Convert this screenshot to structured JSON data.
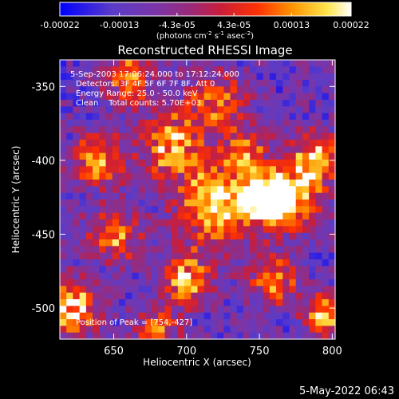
{
  "chart_data": {
    "type": "heatmap",
    "title": "Reconstructed RHESSI Image",
    "xlabel": "Heliocentric X (arcsec)",
    "ylabel": "Heliocentric Y (arcsec)",
    "xlim": [
      613,
      802
    ],
    "ylim": [
      -521,
      -332
    ],
    "xticks": [
      650,
      700,
      750,
      800
    ],
    "yticks": [
      -350,
      -400,
      -450,
      -500
    ],
    "colorbar": {
      "min": -0.00022,
      "max": 0.00022,
      "ticks": [
        "-0.00022",
        "-0.00013",
        "-4.3e-05",
        "4.3e-05",
        "0.00013",
        "0.00022"
      ],
      "unit_label_parts": [
        "(photons cm",
        "-2",
        " s",
        "-1",
        " asec",
        "-2",
        ")"
      ]
    },
    "annotations": {
      "time_range": "5-Sep-2003 17:06:24.000 to 17:12:24.000",
      "detectors": "Detectors: 3F 4F 5F 6F 7F 8F, Att 0",
      "energy_range": "Energy Range: 25.0 - 50.0 keV",
      "clean_counts": "Clean    Total counts: 5.70E+03",
      "peak_position": "Position of Peak = [754,-427]"
    },
    "intensity_field": {
      "background": 0.25,
      "blobs": [
        {
          "x": 690,
          "y": -390,
          "amp": 0.6,
          "s": 15
        },
        {
          "x": 720,
          "y": -430,
          "amp": 0.7,
          "s": 18
        },
        {
          "x": 754,
          "y": -427,
          "amp": 0.95,
          "s": 10
        },
        {
          "x": 770,
          "y": -425,
          "amp": 0.7,
          "s": 14
        },
        {
          "x": 640,
          "y": -400,
          "amp": 0.6,
          "s": 12
        },
        {
          "x": 650,
          "y": -450,
          "amp": 0.55,
          "s": 12
        },
        {
          "x": 790,
          "y": -400,
          "amp": 0.6,
          "s": 12
        },
        {
          "x": 620,
          "y": -500,
          "amp": 0.75,
          "s": 12
        },
        {
          "x": 700,
          "y": -480,
          "amp": 0.6,
          "s": 12
        },
        {
          "x": 720,
          "y": -360,
          "amp": 0.45,
          "s": 14
        },
        {
          "x": 660,
          "y": -345,
          "amp": 0.5,
          "s": 12
        },
        {
          "x": 760,
          "y": -480,
          "amp": 0.5,
          "s": 12
        },
        {
          "x": 795,
          "y": -505,
          "amp": 0.55,
          "s": 10
        },
        {
          "x": 740,
          "y": -395,
          "amp": 0.45,
          "s": 12
        },
        {
          "x": 680,
          "y": -515,
          "amp": 0.5,
          "s": 10
        }
      ]
    }
  },
  "footer": {
    "timestamp": "5-May-2022 06:43"
  }
}
